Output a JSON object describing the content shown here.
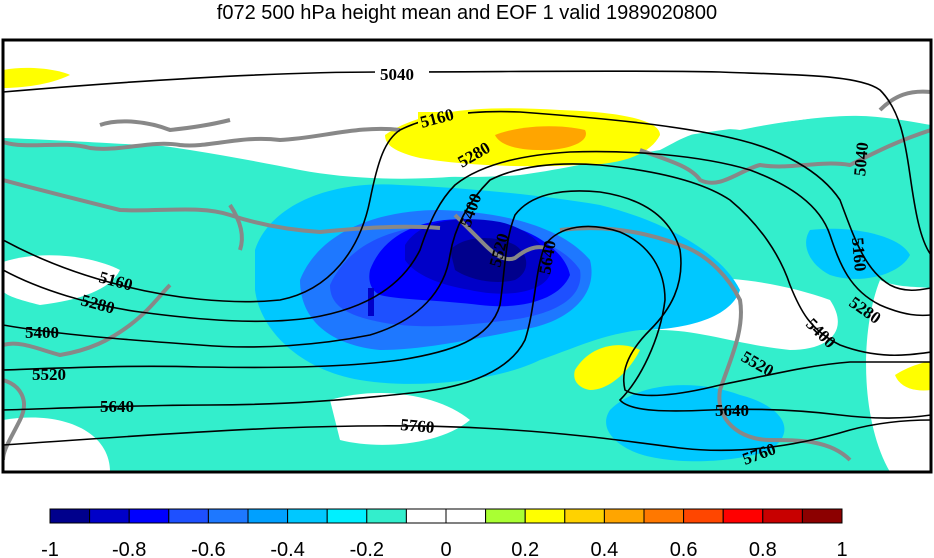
{
  "title": "f072 500 hPa height mean and EOF 1 valid 1989020800",
  "contour_labels": [
    "5040",
    "5160",
    "5280",
    "5400",
    "5520",
    "5640",
    "5760"
  ],
  "colorbar": {
    "ticks": [
      "-1",
      "-0.8",
      "-0.6",
      "-0.4",
      "-0.2",
      "0",
      "0.2",
      "0.4",
      "0.6",
      "0.8",
      "1"
    ],
    "colors": [
      "#00008c",
      "#0000c8",
      "#0000ff",
      "#1e50ff",
      "#1e78ff",
      "#00a0ff",
      "#00c8ff",
      "#00f0ff",
      "#33eecc",
      "#ffffff",
      "#ffffff",
      "#aaff33",
      "#ffff00",
      "#ffd200",
      "#ffa500",
      "#ff7800",
      "#ff4600",
      "#ff0000",
      "#c80000",
      "#8c0000"
    ]
  },
  "colors": {
    "land_outline": "#888888",
    "contour": "#000000",
    "frame": "#000000"
  }
}
